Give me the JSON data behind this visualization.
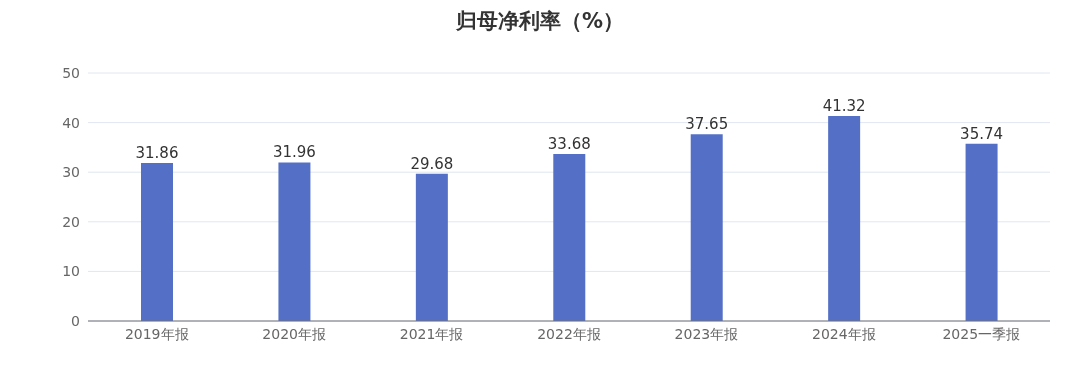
{
  "chart_data": {
    "type": "bar",
    "title": "归母净利率（%）",
    "categories": [
      "2019年报",
      "2020年报",
      "2021年报",
      "2022年报",
      "2023年报",
      "2024年报",
      "2025一季报"
    ],
    "values": [
      31.86,
      31.96,
      29.68,
      33.68,
      37.65,
      41.32,
      35.74
    ],
    "color": "#5470c6",
    "ylim": [
      0,
      50
    ],
    "yticks": [
      0,
      10,
      20,
      30,
      40,
      50
    ],
    "grid": "y",
    "data_labels": true
  }
}
